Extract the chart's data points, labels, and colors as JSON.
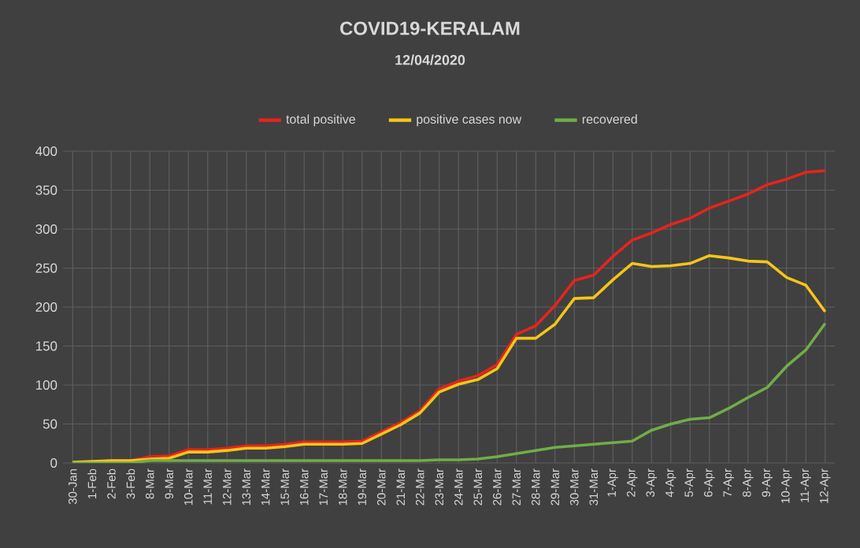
{
  "chart_data": {
    "type": "line",
    "title": "COVID19-KERALAM",
    "subtitle": "12/04/2020",
    "categories": [
      "30-Jan",
      "1-Feb",
      "2-Feb",
      "3-Feb",
      "8-Mar",
      "9-Mar",
      "10-Mar",
      "11-Mar",
      "12-Mar",
      "13-Mar",
      "14-Mar",
      "15-Mar",
      "16-Mar",
      "17-Mar",
      "18-Mar",
      "19-Mar",
      "20-Mar",
      "21-Mar",
      "22-Mar",
      "23-Mar",
      "24-Mar",
      "25-Mar",
      "26-Mar",
      "27-Mar",
      "28-Mar",
      "29-Mar",
      "30-Mar",
      "31-Mar",
      "1-Apr",
      "2-Apr",
      "3-Apr",
      "4-Apr",
      "5-Apr",
      "6-Apr",
      "7-Apr",
      "8-Apr",
      "9-Apr",
      "10-Apr",
      "11-Apr",
      "12-Apr"
    ],
    "series": [
      {
        "name": "total positive",
        "color": "#e8231d",
        "values": [
          null,
          null,
          3,
          3,
          8,
          9,
          17,
          17,
          19,
          22,
          22,
          24,
          27,
          27,
          27,
          28,
          40,
          52,
          67,
          95,
          105,
          112,
          126,
          165,
          176,
          202,
          234,
          241,
          265,
          286,
          295,
          306,
          314,
          327,
          336,
          345,
          357,
          364,
          373,
          375
        ]
      },
      {
        "name": "positive cases now",
        "color": "#f5c518",
        "values": [
          1,
          2,
          3,
          3,
          5,
          6,
          14,
          14,
          16,
          19,
          19,
          21,
          24,
          24,
          24,
          25,
          37,
          49,
          64,
          91,
          101,
          107,
          121,
          160,
          160,
          178,
          211,
          212,
          235,
          256,
          252,
          253,
          256,
          266,
          263,
          259,
          258,
          238,
          228,
          194
        ]
      },
      {
        "name": "recovered",
        "color": "#70ad47",
        "values": [
          0,
          0,
          0,
          0,
          3,
          3,
          3,
          3,
          3,
          3,
          3,
          3,
          3,
          3,
          3,
          3,
          3,
          3,
          3,
          4,
          4,
          5,
          8,
          12,
          16,
          20,
          22,
          24,
          26,
          28,
          42,
          50,
          56,
          58,
          70,
          84,
          97,
          124,
          145,
          179
        ]
      }
    ],
    "ylim": [
      0,
      400
    ],
    "yticks": [
      0,
      50,
      100,
      150,
      200,
      250,
      300,
      350,
      400
    ],
    "grid": true,
    "legend": "top",
    "marker": "none",
    "line_style": "solid"
  }
}
